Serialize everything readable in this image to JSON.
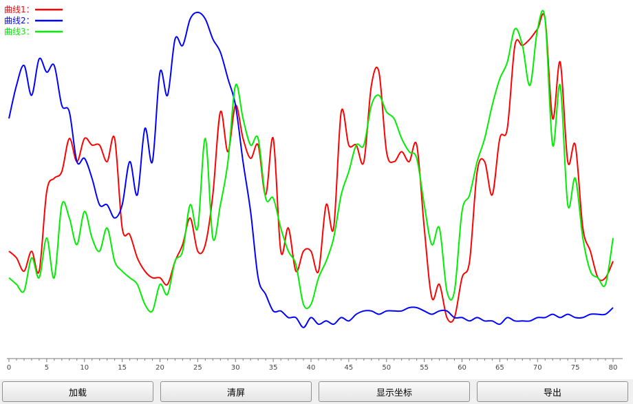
{
  "chart_data": {
    "type": "line",
    "xlim": [
      0,
      80
    ],
    "xticks": [
      0,
      5,
      10,
      15,
      20,
      25,
      30,
      35,
      40,
      45,
      50,
      55,
      60,
      65,
      70,
      75,
      80
    ],
    "legend_position": "top-left",
    "grid": false,
    "series": [
      {
        "name": "曲线1：",
        "color": "#ff0000",
        "x": [
          0,
          1,
          2,
          3,
          4,
          5,
          6,
          7,
          8,
          9,
          10,
          11,
          12,
          13,
          14,
          15,
          16,
          17,
          18,
          19,
          20,
          21,
          22,
          23,
          24,
          25,
          26,
          27,
          28,
          29,
          30,
          31,
          32,
          33,
          34,
          35,
          36,
          37,
          38,
          39,
          40,
          41,
          42,
          43,
          44,
          45,
          46,
          47,
          48,
          49,
          50,
          51,
          52,
          53,
          54,
          55,
          56,
          57,
          58,
          59,
          60,
          61,
          62,
          63,
          64,
          65,
          66,
          67,
          68,
          69,
          70,
          71,
          72,
          73,
          74,
          75,
          76,
          77,
          78,
          79,
          80
        ],
        "values": [
          0.28,
          0.26,
          0.22,
          0.28,
          0.22,
          0.46,
          0.5,
          0.52,
          0.62,
          0.55,
          0.62,
          0.6,
          0.6,
          0.55,
          0.62,
          0.35,
          0.33,
          0.26,
          0.22,
          0.2,
          0.2,
          0.18,
          0.25,
          0.3,
          0.38,
          0.28,
          0.3,
          0.45,
          0.7,
          0.58,
          0.72,
          0.62,
          0.56,
          0.6,
          0.45,
          0.62,
          0.28,
          0.35,
          0.22,
          0.28,
          0.28,
          0.22,
          0.42,
          0.35,
          0.7,
          0.6,
          0.6,
          0.55,
          0.78,
          0.82,
          0.58,
          0.55,
          0.58,
          0.55,
          0.6,
          0.35,
          0.14,
          0.18,
          0.08,
          0.08,
          0.2,
          0.25,
          0.52,
          0.55,
          0.45,
          0.62,
          0.65,
          0.9,
          0.9,
          0.92,
          0.95,
          0.98,
          0.68,
          0.85,
          0.55,
          0.6,
          0.35,
          0.28,
          0.2,
          0.2,
          0.25
        ]
      },
      {
        "name": "曲线2：",
        "color": "#0000ff",
        "x": [
          0,
          1,
          2,
          3,
          4,
          5,
          6,
          7,
          8,
          9,
          10,
          11,
          12,
          13,
          14,
          15,
          16,
          17,
          18,
          19,
          20,
          21,
          22,
          23,
          24,
          25,
          26,
          27,
          28,
          29,
          30,
          31,
          32,
          33,
          34,
          35,
          36,
          37,
          38,
          39,
          40,
          41,
          42,
          43,
          44,
          45,
          46,
          47,
          48,
          49,
          50,
          51,
          52,
          53,
          54,
          55,
          56,
          57,
          58,
          59,
          60,
          61,
          62,
          63,
          64,
          65,
          66,
          67,
          68,
          69,
          70,
          71,
          72,
          73,
          74,
          75,
          76,
          77,
          78,
          79,
          80
        ],
        "values": [
          0.68,
          0.78,
          0.84,
          0.75,
          0.86,
          0.82,
          0.84,
          0.72,
          0.7,
          0.55,
          0.56,
          0.5,
          0.42,
          0.42,
          0.38,
          0.42,
          0.55,
          0.45,
          0.65,
          0.55,
          0.82,
          0.75,
          0.92,
          0.9,
          0.98,
          1.0,
          0.98,
          0.92,
          0.88,
          0.8,
          0.72,
          0.55,
          0.4,
          0.2,
          0.15,
          0.1,
          0.1,
          0.08,
          0.08,
          0.05,
          0.08,
          0.06,
          0.07,
          0.06,
          0.08,
          0.07,
          0.09,
          0.1,
          0.1,
          0.09,
          0.1,
          0.1,
          0.1,
          0.11,
          0.11,
          0.1,
          0.09,
          0.1,
          0.1,
          0.08,
          0.08,
          0.07,
          0.08,
          0.07,
          0.07,
          0.06,
          0.08,
          0.07,
          0.07,
          0.07,
          0.08,
          0.08,
          0.09,
          0.08,
          0.09,
          0.08,
          0.08,
          0.09,
          0.09,
          0.09,
          0.11
        ]
      },
      {
        "name": "曲线3：",
        "color": "#00ee00",
        "x": [
          0,
          1,
          2,
          3,
          4,
          5,
          6,
          7,
          8,
          9,
          10,
          11,
          12,
          13,
          14,
          15,
          16,
          17,
          18,
          19,
          20,
          21,
          22,
          23,
          24,
          25,
          26,
          27,
          28,
          29,
          30,
          31,
          32,
          33,
          34,
          35,
          36,
          37,
          38,
          39,
          40,
          41,
          42,
          43,
          44,
          45,
          46,
          47,
          48,
          49,
          50,
          51,
          52,
          53,
          54,
          55,
          56,
          57,
          58,
          59,
          60,
          61,
          62,
          63,
          64,
          65,
          66,
          67,
          68,
          69,
          70,
          71,
          72,
          73,
          74,
          75,
          76,
          77,
          78,
          79,
          80
        ],
        "values": [
          0.2,
          0.18,
          0.16,
          0.26,
          0.2,
          0.32,
          0.2,
          0.42,
          0.38,
          0.3,
          0.4,
          0.32,
          0.28,
          0.35,
          0.25,
          0.22,
          0.2,
          0.18,
          0.12,
          0.1,
          0.18,
          0.15,
          0.25,
          0.28,
          0.42,
          0.35,
          0.62,
          0.32,
          0.42,
          0.55,
          0.78,
          0.68,
          0.6,
          0.62,
          0.44,
          0.44,
          0.35,
          0.28,
          0.24,
          0.12,
          0.12,
          0.2,
          0.25,
          0.32,
          0.45,
          0.52,
          0.6,
          0.6,
          0.72,
          0.75,
          0.7,
          0.68,
          0.62,
          0.58,
          0.56,
          0.42,
          0.3,
          0.35,
          0.16,
          0.16,
          0.4,
          0.45,
          0.55,
          0.62,
          0.72,
          0.8,
          0.85,
          0.95,
          0.9,
          0.78,
          0.95,
          0.98,
          0.6,
          0.78,
          0.42,
          0.5,
          0.32,
          0.22,
          0.2,
          0.18,
          0.32
        ]
      }
    ]
  },
  "buttons": {
    "load_label": "加载",
    "clear_label": "清屏",
    "show_coords_label": "显示坐标",
    "export_label": "导出"
  }
}
